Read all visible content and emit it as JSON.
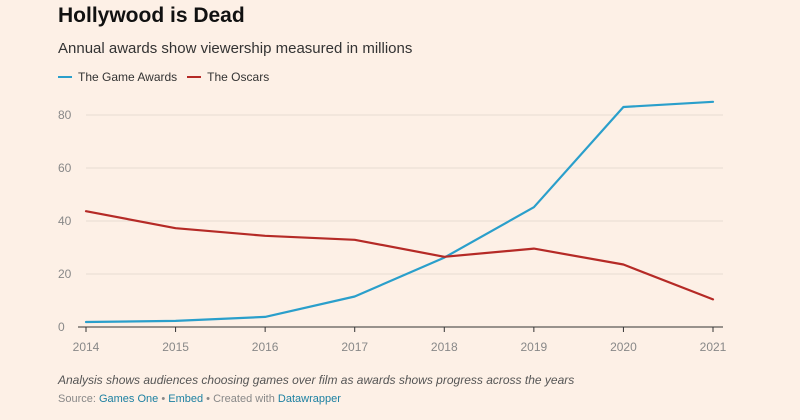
{
  "chart_data": {
    "type": "line",
    "title": "Hollywood is Dead",
    "subtitle": "Annual awards show viewership measured in millions",
    "x": [
      "2014",
      "2015",
      "2016",
      "2017",
      "2018",
      "2019",
      "2020",
      "2021"
    ],
    "series": [
      {
        "name": "The Game Awards",
        "color": "#2a9fcb",
        "values": [
          1.9,
          2.3,
          3.8,
          11.5,
          26.2,
          45.2,
          83.0,
          85.0
        ]
      },
      {
        "name": "The Oscars",
        "color": "#b52a26",
        "values": [
          43.7,
          37.3,
          34.4,
          32.9,
          26.5,
          29.6,
          23.6,
          10.4
        ]
      }
    ],
    "ylim": [
      0,
      80
    ],
    "yticks": [
      0,
      20,
      40,
      60,
      80
    ],
    "xlabel": "",
    "ylabel": "",
    "grid": true,
    "legend_position": "top-left"
  },
  "note": "Analysis shows audiences choosing games over film as awards shows progress across the years",
  "source": {
    "prefix": "Source: ",
    "link1": "Games One",
    "sep1": " • ",
    "link2": "Embed",
    "sep2": " • Created with ",
    "link3": "Datawrapper"
  }
}
